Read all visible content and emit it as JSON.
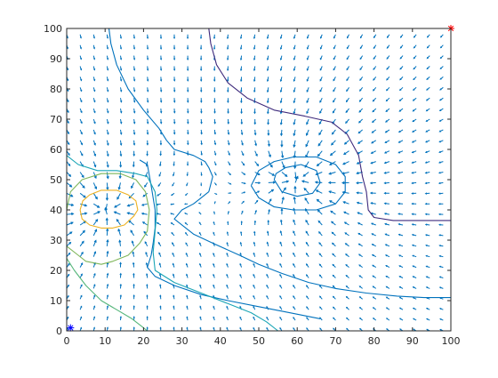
{
  "chart_data": {
    "type": "contour",
    "title": "",
    "xlabel": "",
    "ylabel": "",
    "xlim": [
      0,
      100
    ],
    "ylim": [
      0,
      100
    ],
    "xticks": [
      0,
      10,
      20,
      30,
      40,
      50,
      60,
      70,
      80,
      90,
      100
    ],
    "yticks": [
      0,
      10,
      20,
      30,
      40,
      50,
      60,
      70,
      80,
      90,
      100
    ],
    "grid": false,
    "box": true,
    "quiver": {
      "color": "#0072BD",
      "grid_step": 3.5,
      "sources": [
        {
          "x": 60,
          "y": 50,
          "strength": 1
        },
        {
          "x": 10,
          "y": 40,
          "strength": 1
        }
      ]
    },
    "contours": [
      {
        "level": 1,
        "color": "#3E2A7C",
        "points": [
          [
            37,
            100
          ],
          [
            37.5,
            95
          ],
          [
            39,
            88
          ],
          [
            42,
            82
          ],
          [
            47,
            77
          ],
          [
            54,
            73
          ],
          [
            62,
            71
          ],
          [
            69,
            69
          ],
          [
            73,
            65
          ],
          [
            76,
            58
          ],
          [
            77,
            51
          ],
          [
            78,
            46
          ],
          [
            78.5,
            40
          ],
          [
            80,
            37.5
          ],
          [
            85,
            36.5
          ],
          [
            93,
            36.5
          ],
          [
            100,
            36.5
          ]
        ]
      },
      {
        "level": 2,
        "color": "#0072BD",
        "points": [
          [
            11,
            100
          ],
          [
            11.5,
            95
          ],
          [
            13,
            88
          ],
          [
            16,
            80
          ],
          [
            20,
            73
          ],
          [
            24,
            67
          ],
          [
            26,
            63
          ]
        ]
      },
      {
        "level": 3,
        "color": "#0072BD",
        "points": [
          [
            26,
            63
          ],
          [
            28,
            60
          ],
          [
            33,
            58
          ],
          [
            36,
            56
          ],
          [
            37,
            54
          ],
          [
            38,
            51
          ],
          [
            37,
            46
          ]
        ]
      },
      {
        "level": 4,
        "color": "#0072BD",
        "points": [
          [
            37,
            46
          ],
          [
            35,
            44
          ],
          [
            33,
            42
          ],
          [
            30,
            40
          ],
          [
            28,
            37
          ],
          [
            33,
            32
          ],
          [
            38,
            29
          ],
          [
            45,
            25
          ],
          [
            50,
            22
          ],
          [
            56,
            19
          ],
          [
            63,
            16
          ],
          [
            70,
            14
          ],
          [
            78,
            12.5
          ],
          [
            86,
            11.5
          ],
          [
            93,
            11
          ],
          [
            100,
            11
          ]
        ]
      },
      {
        "level": 5,
        "color": "#0072BD",
        "points": [
          [
            19,
            56.5
          ],
          [
            21,
            55
          ],
          [
            22,
            48
          ],
          [
            23,
            40
          ],
          [
            23,
            34
          ],
          [
            22.5,
            29
          ],
          [
            22,
            25
          ],
          [
            21,
            21
          ],
          [
            23,
            18
          ],
          [
            28,
            15
          ],
          [
            35,
            12
          ],
          [
            42,
            10
          ],
          [
            50,
            8
          ],
          [
            58,
            6
          ],
          [
            66,
            4
          ]
        ]
      },
      {
        "level": 6,
        "color": "#1AA5B5",
        "points": [
          [
            0,
            58
          ],
          [
            3,
            55
          ],
          [
            8,
            53
          ],
          [
            13,
            53
          ],
          [
            18,
            52
          ],
          [
            21,
            51
          ],
          [
            23,
            46
          ],
          [
            23.5,
            40
          ],
          [
            23,
            33
          ],
          [
            22.5,
            26
          ],
          [
            23,
            20
          ],
          [
            28,
            16
          ],
          [
            34,
            13
          ],
          [
            42,
            9
          ],
          [
            48,
            6
          ],
          [
            52,
            3
          ],
          [
            55,
            0
          ]
        ]
      },
      {
        "level": 7,
        "color": "#55B67A",
        "points": [
          [
            0,
            24
          ],
          [
            2,
            20
          ],
          [
            5,
            15
          ],
          [
            9,
            10
          ],
          [
            13,
            7
          ],
          [
            17,
            4
          ],
          [
            20,
            1
          ],
          [
            21,
            0
          ]
        ]
      },
      {
        "level": 8,
        "color": "#7FB65A",
        "points": [
          [
            0,
            28
          ],
          [
            3,
            25
          ],
          [
            5,
            23
          ],
          [
            9,
            22
          ],
          [
            12,
            23
          ],
          [
            16,
            25
          ],
          [
            19,
            29
          ],
          [
            21,
            33
          ],
          [
            21.5,
            40
          ],
          [
            20.5,
            46
          ],
          [
            18,
            50
          ],
          [
            14,
            52
          ],
          [
            9,
            52
          ],
          [
            4,
            50
          ],
          [
            1,
            46
          ],
          [
            0,
            40
          ]
        ]
      },
      {
        "level": 9,
        "color": "#EDB120",
        "points": [
          [
            3.5,
            40
          ],
          [
            4,
            37
          ],
          [
            6,
            35
          ],
          [
            9,
            34
          ],
          [
            12,
            34
          ],
          [
            15,
            35
          ],
          [
            17.5,
            38
          ],
          [
            18.5,
            40
          ],
          [
            18,
            43
          ],
          [
            16,
            45
          ],
          [
            13,
            46.5
          ],
          [
            9,
            46.5
          ],
          [
            6,
            45
          ],
          [
            4.2,
            43
          ],
          [
            3.5,
            40
          ]
        ]
      },
      {
        "level": 10,
        "color": "#0072BD",
        "points": [
          [
            48,
            48
          ],
          [
            50,
            44
          ],
          [
            54,
            41
          ],
          [
            59,
            40
          ],
          [
            65,
            40
          ],
          [
            70,
            42
          ],
          [
            72.5,
            46
          ],
          [
            72.5,
            51
          ],
          [
            70,
            55
          ],
          [
            65,
            57.5
          ],
          [
            59,
            57.5
          ],
          [
            54,
            56
          ],
          [
            50,
            53
          ],
          [
            48,
            48
          ]
        ]
      },
      {
        "level": 11,
        "color": "#0072BD",
        "points": [
          [
            54,
            50
          ],
          [
            56,
            46
          ],
          [
            60,
            44.5
          ],
          [
            64,
            45.5
          ],
          [
            66,
            49
          ],
          [
            65,
            53
          ],
          [
            61,
            55
          ],
          [
            57,
            54
          ],
          [
            54.5,
            52
          ],
          [
            54,
            50
          ]
        ]
      }
    ],
    "markers": [
      {
        "x": 1,
        "y": 1,
        "symbol": "*",
        "color": "#0000FF"
      },
      {
        "x": 100,
        "y": 100,
        "symbol": "*",
        "color": "#FF0000"
      }
    ]
  }
}
